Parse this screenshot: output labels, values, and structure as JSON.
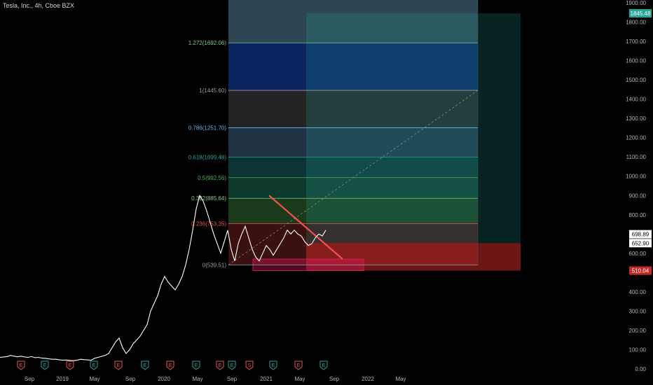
{
  "header": {
    "title": "Tesla, Inc., 4h, Cboe BZX"
  },
  "chart_data": {
    "type": "line",
    "title": "Tesla, Inc., 4h, Cboe BZX",
    "ylim": [
      0,
      1900
    ],
    "y_ticks": [
      "1900.00",
      "1800.00",
      "1700.00",
      "1600.00",
      "1500.00",
      "1400.00",
      "1300.00",
      "1200.00",
      "1100.00",
      "1000.00",
      "900.00",
      "800.00",
      "700.00",
      "600.00",
      "500.00",
      "400.00",
      "300.00",
      "200.00",
      "100.00",
      "0.00"
    ],
    "x_ticks": [
      "Sep",
      "2019",
      "May",
      "Sep",
      "2020",
      "May",
      "Sep",
      "2021",
      "May",
      "Sep",
      "2022",
      "May"
    ],
    "price_labels": [
      {
        "text": "1845.48",
        "value": 1845.48,
        "color": "#26a69a"
      },
      {
        "text": "698.89",
        "value": 698.89,
        "color": "#ffffff"
      },
      {
        "text": "652.90",
        "value": 652.9,
        "color": "#ffffff"
      },
      {
        "text": "510.04",
        "value": 510.04,
        "color": "#c62828"
      }
    ],
    "fib_levels": [
      {
        "label": "1.272(1692.06)",
        "value": 1692.06,
        "color": "#81c784"
      },
      {
        "label": "1(1445.60)",
        "value": 1445.6,
        "color": "#9e9e9e"
      },
      {
        "label": "0.786(1251.70)",
        "value": 1251.7,
        "color": "#64b5f6"
      },
      {
        "label": "0.618(1099.48)",
        "value": 1099.48,
        "color": "#26a69a"
      },
      {
        "label": "0.5(992.56)",
        "value": 992.56,
        "color": "#4caf50"
      },
      {
        "label": "0.382(885.64)",
        "value": 885.64,
        "color": "#81c784"
      },
      {
        "label": "0.236(753.35)",
        "value": 753.35,
        "color": "#ef5350"
      },
      {
        "label": "0(539.51)",
        "value": 539.51,
        "color": "#9e9e9e"
      }
    ],
    "events": [
      "E",
      "E",
      "E",
      "E",
      "E",
      "E",
      "E",
      "E",
      "E",
      "E",
      "S",
      "E",
      "E",
      "E"
    ],
    "series": [
      {
        "x": [
          0,
          5,
          10,
          15,
          20,
          25,
          30,
          35,
          40,
          45,
          50,
          55,
          60,
          65,
          70,
          75,
          80,
          85,
          90,
          95,
          100,
          105,
          110,
          115,
          120,
          125,
          130,
          135,
          140,
          145,
          150,
          155,
          160,
          165,
          170,
          175,
          180,
          185,
          190,
          195,
          200,
          205,
          210,
          215,
          220,
          225,
          230,
          235,
          240,
          245,
          250,
          255,
          260,
          265,
          270,
          275,
          280,
          285,
          290,
          295,
          300,
          305,
          310,
          315,
          320,
          325,
          330,
          335,
          340,
          345,
          350,
          355,
          360,
          365,
          370,
          375,
          380,
          385,
          390,
          395,
          400,
          405,
          410,
          415,
          420,
          425,
          430,
          435,
          440,
          445,
          450,
          455,
          460,
          465
        ],
        "y": [
          60,
          62,
          64,
          70,
          66,
          63,
          66,
          62,
          60,
          64,
          58,
          60,
          56,
          55,
          52,
          50,
          50,
          47,
          45,
          46,
          44,
          43,
          45,
          50,
          48,
          47,
          45,
          55,
          60,
          65,
          70,
          80,
          110,
          140,
          160,
          110,
          80,
          100,
          130,
          150,
          170,
          200,
          230,
          300,
          340,
          380,
          440,
          480,
          450,
          430,
          410,
          440,
          480,
          540,
          620,
          720,
          830,
          900,
          870,
          820,
          760,
          700,
          650,
          600,
          660,
          720,
          620,
          560,
          650,
          700,
          740,
          680,
          620,
          580,
          560,
          600,
          640,
          620,
          590,
          620,
          650,
          680,
          720,
          700,
          720,
          700,
          690,
          660,
          640,
          650,
          680,
          700,
          690,
          720
        ]
      }
    ]
  }
}
